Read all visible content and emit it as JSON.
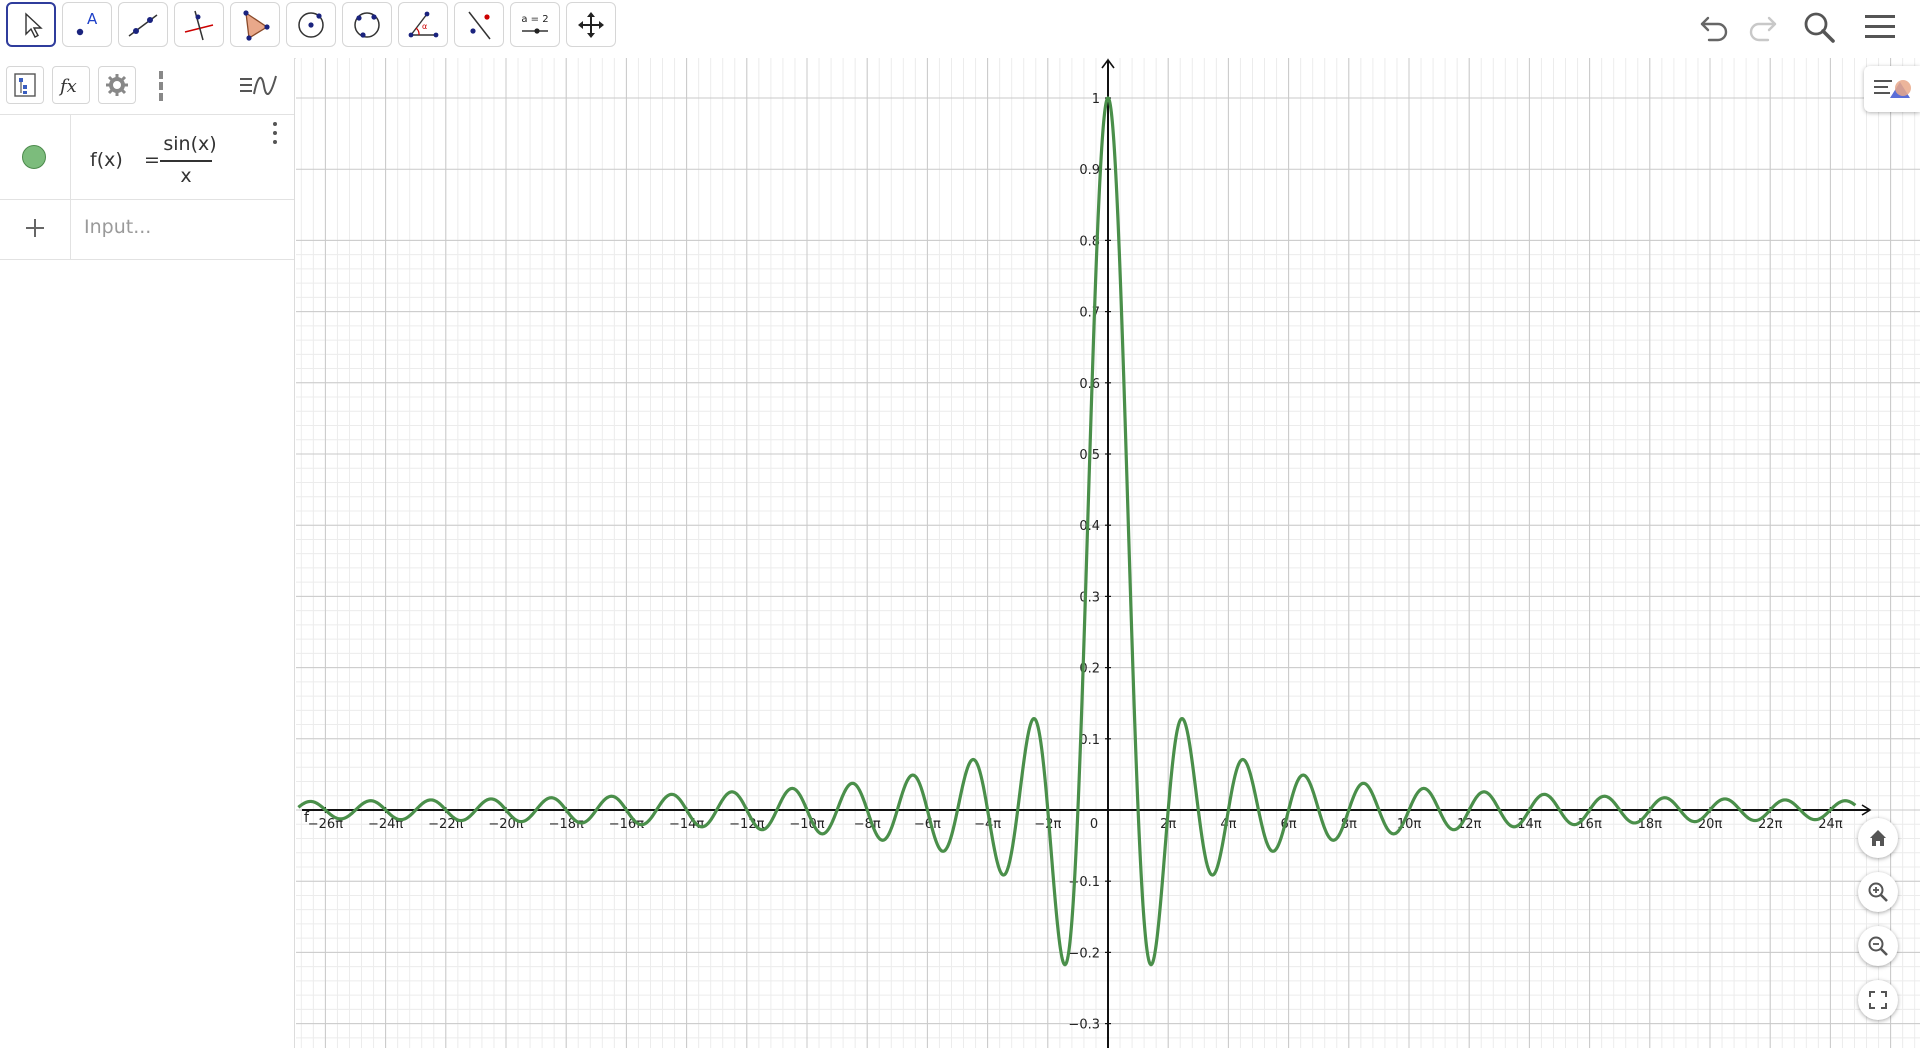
{
  "toolbar": {
    "tools": [
      {
        "name": "move-tool"
      },
      {
        "name": "point-tool"
      },
      {
        "name": "line-tool"
      },
      {
        "name": "perpendicular-line-tool"
      },
      {
        "name": "polygon-tool"
      },
      {
        "name": "circle-center-point-tool"
      },
      {
        "name": "circle-three-points-tool"
      },
      {
        "name": "angle-tool"
      },
      {
        "name": "reflect-tool"
      },
      {
        "name": "slider-tool",
        "label": "a = 2"
      },
      {
        "name": "move-graphics-view-tool"
      }
    ],
    "right_buttons": [
      "undo",
      "redo",
      "search",
      "menu"
    ]
  },
  "algebra": {
    "function": {
      "lhs": "f(x)",
      "eq": "=",
      "numerator": "sin(x)",
      "denominator": "x",
      "color": "#4a8f4a"
    },
    "input_placeholder": "Input..."
  },
  "graph": {
    "x_tick_labels": [
      "−26π",
      "−24π",
      "−22π",
      "−20π",
      "−18π",
      "−16π",
      "−14π",
      "−12π",
      "−10π",
      "−8π",
      "−6π",
      "−4π",
      "−2π",
      "0",
      "2π",
      "4π",
      "6π",
      "8π",
      "10π",
      "12π",
      "14π",
      "16π",
      "18π",
      "20π",
      "22π",
      "24π"
    ],
    "y_tick_labels": [
      "1",
      "0.9",
      "0.8",
      "0.7",
      "0.6",
      "0.5",
      "0.4",
      "0.3",
      "0.2",
      "0.1",
      "−0.1",
      "−0.2",
      "−0.3"
    ],
    "curve_label": "f",
    "x_tick_step_pi": 2,
    "y_tick_step": 0.1,
    "x_axis_extent_pi": [
      -26.9,
      24.8
    ],
    "y_axis_extent": [
      -0.32,
      1.05
    ]
  },
  "chart_data": {
    "type": "line",
    "function": "sin(x)/x",
    "title": "",
    "xlabel": "",
    "ylabel": "",
    "xlim": [
      -84.5,
      78.0
    ],
    "ylim": [
      -0.32,
      1.05
    ],
    "grid": true,
    "series": [
      {
        "name": "f",
        "color": "#4a8f4a"
      }
    ],
    "key_points": [
      {
        "x": 0,
        "y": 1
      },
      {
        "x": 4.49,
        "y": -0.217
      },
      {
        "x": -4.49,
        "y": -0.217
      },
      {
        "x": 7.73,
        "y": 0.128
      },
      {
        "x": -7.73,
        "y": 0.128
      }
    ]
  }
}
